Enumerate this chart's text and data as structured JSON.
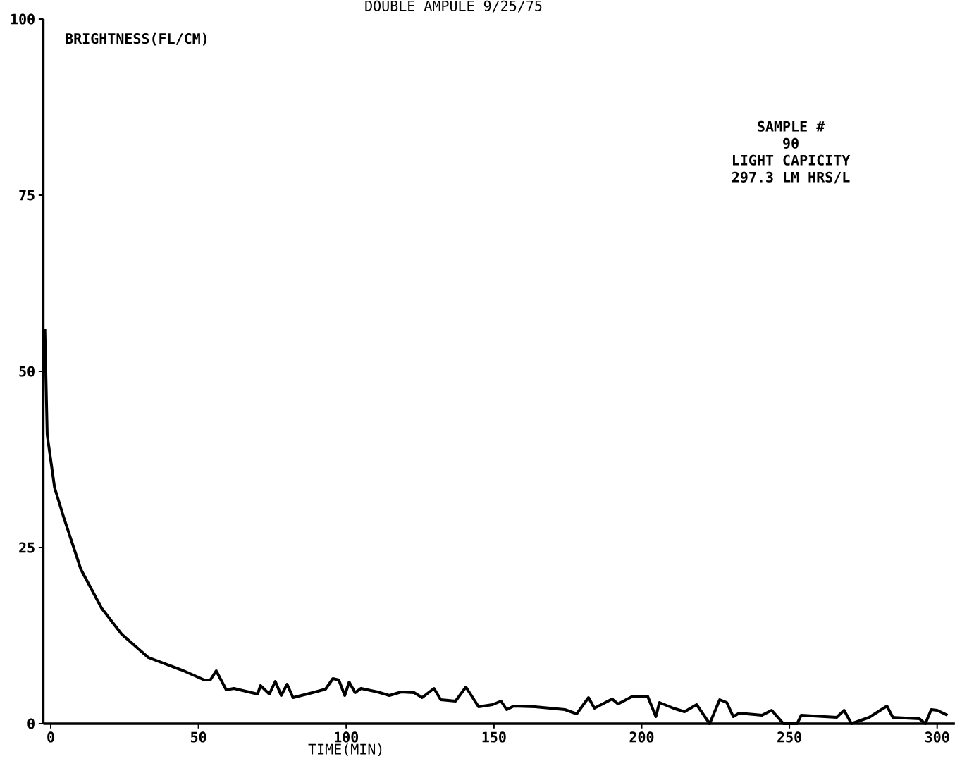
{
  "chart_data": {
    "type": "line",
    "title": "DOUBLE AMPULE 9/25/75",
    "xlabel": "TIME(MIN)",
    "ylabel": "BRIGHTNESS(FL/CM)",
    "annotations": [
      "SAMPLE #",
      "90",
      "LIGHT CAPICITY",
      "297.3 LM HRS/L"
    ],
    "color": "#000000",
    "x": [
      -2,
      -1.2,
      1.3,
      4.3,
      10.2,
      17.2,
      24,
      33,
      45,
      52,
      54,
      56,
      59.4,
      62,
      70,
      71,
      74,
      76,
      78,
      80,
      82,
      88.6,
      93,
      95.5,
      97.5,
      99.5,
      101,
      103,
      105,
      110.6,
      114.6,
      118.6,
      123,
      125.7,
      129.7,
      132,
      137,
      140.5,
      144.8,
      149.5,
      152.4,
      154.3,
      156.7,
      164,
      174,
      178,
      182,
      184,
      190,
      192,
      197,
      202,
      204.8,
      206,
      210.7,
      214.5,
      218.6,
      223,
      226.4,
      228.8,
      231,
      233,
      240.7,
      244,
      248,
      252.6,
      254,
      266,
      268.5,
      271,
      277,
      283,
      285,
      294,
      296,
      298,
      300,
      303.5
    ],
    "values": [
      56,
      41,
      33.5,
      29.4,
      21.9,
      16.4,
      12.7,
      9.4,
      7.5,
      6.2,
      6.2,
      7.5,
      4.8,
      5,
      4.2,
      5.4,
      4.2,
      6,
      4,
      5.6,
      3.7,
      4.4,
      4.9,
      6.4,
      6.2,
      4,
      5.9,
      4.4,
      5,
      4.5,
      4,
      4.5,
      4.4,
      3.7,
      5,
      3.4,
      3.2,
      5.2,
      2.4,
      2.7,
      3.2,
      2,
      2.5,
      2.4,
      2,
      1.4,
      3.7,
      2.2,
      3.5,
      2.8,
      3.9,
      3.9,
      1,
      3,
      2.2,
      1.7,
      2.7,
      0,
      3.4,
      3,
      1,
      1.5,
      1.2,
      1.9,
      0,
      0,
      1.2,
      0.9,
      1.9,
      0,
      0.9,
      2.5,
      0.9,
      0.7,
      0,
      2,
      1.9,
      1.2
    ],
    "xlim": [
      -2.5,
      306
    ],
    "ylim": [
      0,
      100
    ],
    "xticks": [
      0,
      50,
      100,
      150,
      200,
      250,
      300
    ],
    "yticks": [
      0,
      25,
      50,
      75,
      100
    ]
  }
}
